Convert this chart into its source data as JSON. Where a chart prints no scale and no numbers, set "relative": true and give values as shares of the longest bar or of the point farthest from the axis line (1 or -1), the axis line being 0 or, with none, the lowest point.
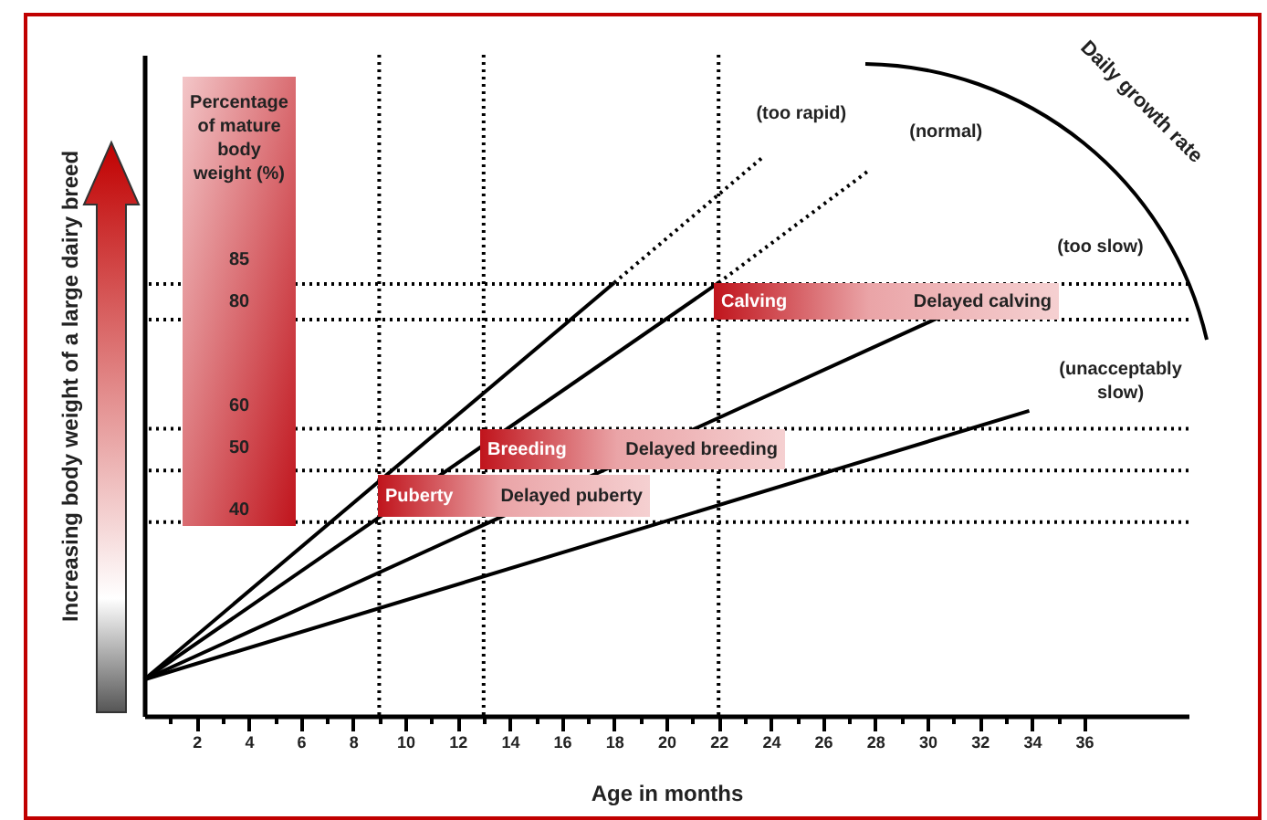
{
  "chart_data": {
    "type": "line",
    "relative": true,
    "xlabel": "Age in months",
    "ylabel": "Increasing body weight of a large dairy breed",
    "xlim": [
      0,
      40
    ],
    "xticks": [
      {
        "value": 1,
        "label": null
      },
      2,
      {
        "value": 3,
        "label": null
      },
      4,
      {
        "value": 5,
        "label": null
      },
      6,
      {
        "value": 7,
        "label": null
      },
      8,
      {
        "value": 9,
        "label": null
      },
      10,
      {
        "value": 11,
        "label": null
      },
      12,
      {
        "value": 13,
        "label": null
      },
      14,
      {
        "value": 15,
        "label": null
      },
      16,
      {
        "value": 17,
        "label": null
      },
      18,
      {
        "value": 19,
        "label": null
      },
      20,
      {
        "value": 21,
        "label": null
      },
      22,
      {
        "value": 23,
        "label": null
      },
      24,
      {
        "value": 25,
        "label": null
      },
      26,
      {
        "value": 27,
        "label": null
      },
      28,
      {
        "value": 29,
        "label": null
      },
      30,
      {
        "value": 31,
        "label": null
      },
      32,
      {
        "value": 33,
        "label": null
      },
      34,
      {
        "value": 35,
        "label": null
      },
      36
    ],
    "marker": "none",
    "series": [
      {
        "color": "#000000",
        "x": [
          0,
          18
        ],
        "values": [
          0.065,
          0.775
        ]
      },
      {
        "name": "(too rapid)",
        "color": "#000000",
        "line_style": "dotted",
        "x": [
          18,
          23.7
        ],
        "values": [
          0.775,
          1
        ]
      },
      {
        "color": "#000000",
        "x": [
          0,
          22
        ],
        "values": [
          0.065,
          0.775
        ]
      },
      {
        "name": "(normal)",
        "color": "#000000",
        "line_style": "dotted",
        "x": [
          22,
          27.7
        ],
        "values": [
          0.775,
          0.974
        ]
      },
      {
        "name": "(too slow)",
        "color": "#000000",
        "x": [
          0,
          30.4
        ],
        "values": [
          0.065,
          0.712
        ]
      },
      {
        "name": "(unacceptably slow)",
        "color": "#000000",
        "x": [
          0,
          33.9
        ],
        "values": [
          0.065,
          0.546
        ]
      }
    ],
    "ref_lines": [
      {
        "axis": "y",
        "value": 0.773,
        "line_style": "dotted"
      },
      {
        "axis": "y",
        "value": 0.709,
        "line_style": "dotted"
      },
      {
        "axis": "y",
        "value": 0.514,
        "line_style": "dotted"
      },
      {
        "axis": "y",
        "value": 0.439,
        "line_style": "dotted"
      },
      {
        "axis": "y",
        "value": 0.347,
        "line_style": "dotted"
      },
      {
        "axis": "x",
        "value": 9,
        "line_style": "dotted"
      },
      {
        "axis": "x",
        "value": 13,
        "line_style": "dotted"
      },
      {
        "axis": "x",
        "value": 22,
        "line_style": "dotted"
      }
    ],
    "annotations": [
      "Puberty",
      "Delayed puberty",
      "Breeding",
      "Delayed breeding",
      "Calving",
      "Delayed calving",
      "Percentage of mature body weight (%)",
      "85",
      "80",
      "60",
      "50",
      "40",
      "Daily growth rate"
    ]
  }
}
